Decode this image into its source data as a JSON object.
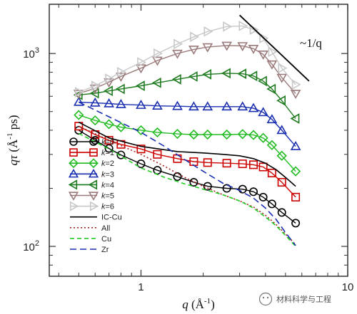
{
  "chart_data": {
    "type": "line",
    "xscale": "log",
    "yscale": "log",
    "xlim": [
      0.36,
      10
    ],
    "ylim": [
      70,
      1800
    ],
    "x_ticks": [
      {
        "value": 1,
        "label": "1"
      },
      {
        "value": 10,
        "label": "10"
      }
    ],
    "y_ticks": [
      {
        "value": 100,
        "label": "10",
        "exp": "2"
      },
      {
        "value": 1000,
        "label": "10",
        "exp": "3"
      }
    ],
    "xlabel": {
      "main": "q",
      "unit": " (Å",
      "exp": "-1",
      "close": ")"
    },
    "ylabel": {
      "main": "qτ",
      "unit": " (Å",
      "exp": "-1",
      "close": " ps)"
    },
    "annotation": {
      "text": "~1/q",
      "x_start": 3.0,
      "y_start": 1580,
      "x_end": 6.5,
      "y_end": 720
    },
    "series": [
      {
        "name": "k=0",
        "prefix": "k",
        "suffix": "=0",
        "color": "#000000",
        "marker": "circle",
        "dash": "",
        "x": [
          0.5,
          0.6,
          0.7,
          0.8,
          1.0,
          1.2,
          1.5,
          1.8,
          2.1,
          2.6,
          3.1,
          3.5,
          3.9,
          4.3,
          4.8,
          5.6
        ],
        "y": [
          400,
          355,
          322,
          298,
          268,
          248,
          230,
          215,
          205,
          200,
          198,
          192,
          180,
          166,
          150,
          132
        ]
      },
      {
        "name": "k=1",
        "prefix": "k",
        "suffix": "=1",
        "color": "#cc0000",
        "marker": "square",
        "dash": "",
        "x": [
          0.5,
          0.6,
          0.7,
          0.8,
          1.0,
          1.2,
          1.5,
          1.8,
          2.1,
          2.6,
          3.1,
          3.5,
          3.9,
          4.3,
          4.8,
          5.6
        ],
        "y": [
          420,
          380,
          355,
          338,
          320,
          300,
          285,
          275,
          272,
          270,
          268,
          265,
          258,
          240,
          215,
          180
        ]
      },
      {
        "name": "k=2",
        "prefix": "k",
        "suffix": "=2",
        "color": "#22bb22",
        "marker": "diamond",
        "dash": "",
        "x": [
          0.5,
          0.6,
          0.7,
          0.8,
          1.0,
          1.2,
          1.5,
          1.8,
          2.1,
          2.6,
          3.1,
          3.5,
          3.9,
          4.3,
          4.8,
          5.6
        ],
        "y": [
          480,
          450,
          430,
          415,
          400,
          390,
          383,
          380,
          380,
          380,
          382,
          378,
          365,
          335,
          295,
          245
        ]
      },
      {
        "name": "k=3",
        "prefix": "k",
        "suffix": "=3",
        "color": "#1a2fb0",
        "marker": "triangle-up",
        "dash": "",
        "x": [
          0.5,
          0.6,
          0.7,
          0.8,
          1.0,
          1.2,
          1.5,
          1.8,
          2.1,
          2.6,
          3.1,
          3.5,
          3.9,
          4.3,
          4.8,
          5.6
        ],
        "y": [
          560,
          555,
          550,
          545,
          540,
          535,
          533,
          530,
          530,
          530,
          530,
          520,
          495,
          455,
          400,
          330
        ]
      },
      {
        "name": "k=4",
        "prefix": "k",
        "suffix": "=4",
        "color": "#1e7a1e",
        "marker": "triangle-left",
        "dash": "",
        "x": [
          0.5,
          0.6,
          0.7,
          0.8,
          1.0,
          1.2,
          1.5,
          1.8,
          2.1,
          2.6,
          3.1,
          3.5,
          3.9,
          4.3,
          4.8,
          5.6
        ],
        "y": [
          610,
          622,
          640,
          655,
          680,
          705,
          735,
          760,
          780,
          790,
          785,
          765,
          720,
          655,
          570,
          460
        ]
      },
      {
        "name": "k=5",
        "prefix": "k",
        "suffix": "=5",
        "color": "#9a7a7a",
        "marker": "triangle-down",
        "dash": "",
        "x": [
          0.5,
          0.6,
          0.7,
          0.8,
          1.0,
          1.2,
          1.5,
          1.8,
          2.1,
          2.6,
          3.1,
          3.5,
          3.9,
          4.3,
          4.8,
          5.6
        ],
        "y": [
          620,
          660,
          710,
          760,
          840,
          920,
          1000,
          1050,
          1080,
          1100,
          1095,
          1060,
          990,
          880,
          750,
          620
        ]
      },
      {
        "name": "k=6",
        "prefix": "k",
        "suffix": "=6",
        "color": "#c8c8c8",
        "marker": "triangle-right",
        "dash": "",
        "x": [
          0.5,
          0.6,
          0.7,
          0.8,
          1.0,
          1.2,
          1.5,
          1.8,
          2.1,
          2.6,
          3.1,
          3.5,
          3.9,
          4.3,
          4.8,
          5.6
        ],
        "y": [
          630,
          680,
          740,
          800,
          900,
          1000,
          1120,
          1220,
          1300,
          1380,
          1390,
          1330,
          1200,
          1020,
          840,
          690
        ]
      },
      {
        "name": "IC-Cu",
        "color": "#000000",
        "marker": "none",
        "dash": "",
        "x": [
          0.5,
          0.7,
          1.0,
          1.5,
          2.0,
          2.5,
          3.0,
          3.5,
          4.0,
          4.5,
          5.0,
          5.6
        ],
        "y": [
          440,
          365,
          330,
          310,
          305,
          300,
          295,
          285,
          270,
          250,
          228,
          205
        ]
      },
      {
        "name": "All",
        "color": "#aa2222",
        "marker": "none",
        "dash": "2,3",
        "x": [
          0.5,
          0.7,
          1.0,
          1.3,
          1.6,
          2.0,
          2.5,
          3.0,
          3.5,
          4.0,
          4.5,
          5.0,
          5.6
        ],
        "y": [
          420,
          355,
          300,
          260,
          230,
          205,
          185,
          172,
          160,
          145,
          130,
          116,
          102
        ]
      },
      {
        "name": "Cu",
        "color": "#22cc22",
        "marker": "none",
        "dash": "6,4",
        "x": [
          0.5,
          0.7,
          1.0,
          1.3,
          1.6,
          2.0,
          2.5,
          3.0,
          3.5,
          4.0,
          4.5,
          5.0,
          5.6
        ],
        "y": [
          385,
          320,
          255,
          228,
          212,
          198,
          185,
          172,
          158,
          142,
          128,
          114,
          100
        ]
      },
      {
        "name": "Zr",
        "color": "#1a2fb0",
        "marker": "none",
        "dash": "9,5",
        "x": [
          0.5,
          0.7,
          1.0,
          1.3,
          1.6,
          2.0,
          2.5,
          3.0,
          3.5,
          4.0,
          4.5,
          5.0,
          5.6
        ],
        "y": [
          560,
          470,
          390,
          330,
          285,
          245,
          212,
          195,
          178,
          158,
          138,
          118,
          101
        ]
      }
    ]
  },
  "watermark": "材料科学与工程"
}
